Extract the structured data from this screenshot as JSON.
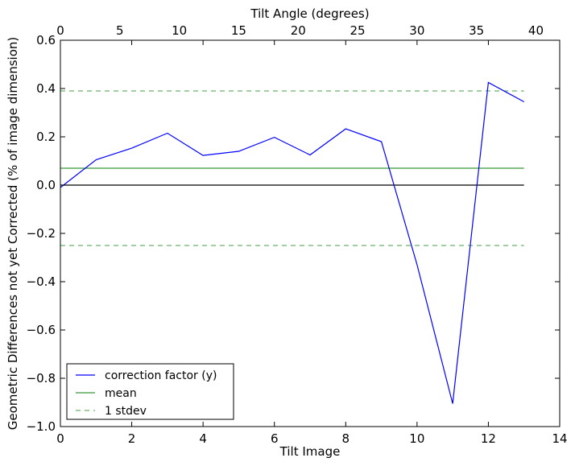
{
  "chart_data": {
    "type": "line",
    "xlabel": "Tilt Image",
    "ylabel": "Geometric Differences not yet Corrected (% of image dimension)",
    "top_xlabel": "Tilt Angle (degrees)",
    "xlim": [
      0,
      14
    ],
    "ylim": [
      -1.0,
      0.6
    ],
    "top_xlim": [
      0,
      42
    ],
    "x_ticks": [
      0,
      2,
      4,
      6,
      8,
      10,
      12,
      14
    ],
    "y_ticks": [
      -1.0,
      -0.8,
      -0.6,
      -0.4,
      -0.2,
      0.0,
      0.2,
      0.4,
      0.6
    ],
    "y_tick_labels": [
      "−1.0",
      "−0.8",
      "−0.6",
      "−0.4",
      "−0.2",
      "0.0",
      "0.2",
      "0.4",
      "0.6"
    ],
    "top_x_ticks": [
      0,
      5,
      10,
      15,
      20,
      25,
      30,
      35,
      40
    ],
    "grid": false,
    "legend_position": "bottom-left",
    "series": [
      {
        "name": "correction factor (y)",
        "color": "#0000ff",
        "style": "solid",
        "x": [
          0,
          1,
          2,
          3,
          4,
          5,
          6,
          7,
          8,
          9,
          10,
          11,
          12,
          13
        ],
        "y": [
          -0.01,
          0.105,
          0.153,
          0.215,
          0.123,
          0.14,
          0.198,
          0.125,
          0.233,
          0.18,
          -0.33,
          -0.905,
          0.425,
          0.345
        ]
      },
      {
        "name": "mean",
        "color": "#008000",
        "style": "solid",
        "x": [
          0,
          13
        ],
        "y": [
          0.07,
          0.07
        ]
      },
      {
        "name": "1 stdev",
        "color": "#008000",
        "style": "dashed",
        "x": [
          0,
          13
        ],
        "y": [
          0.39,
          0.39
        ]
      },
      {
        "name": "",
        "color": "#008000",
        "style": "dashed",
        "x": [
          0,
          13
        ],
        "y": [
          -0.25,
          -0.25
        ]
      },
      {
        "name": "",
        "color": "#000000",
        "style": "solid",
        "x": [
          0,
          13
        ],
        "y": [
          0.0,
          0.0
        ]
      }
    ],
    "legend_entries": [
      "correction factor (y)",
      "mean",
      "1 stdev"
    ]
  }
}
